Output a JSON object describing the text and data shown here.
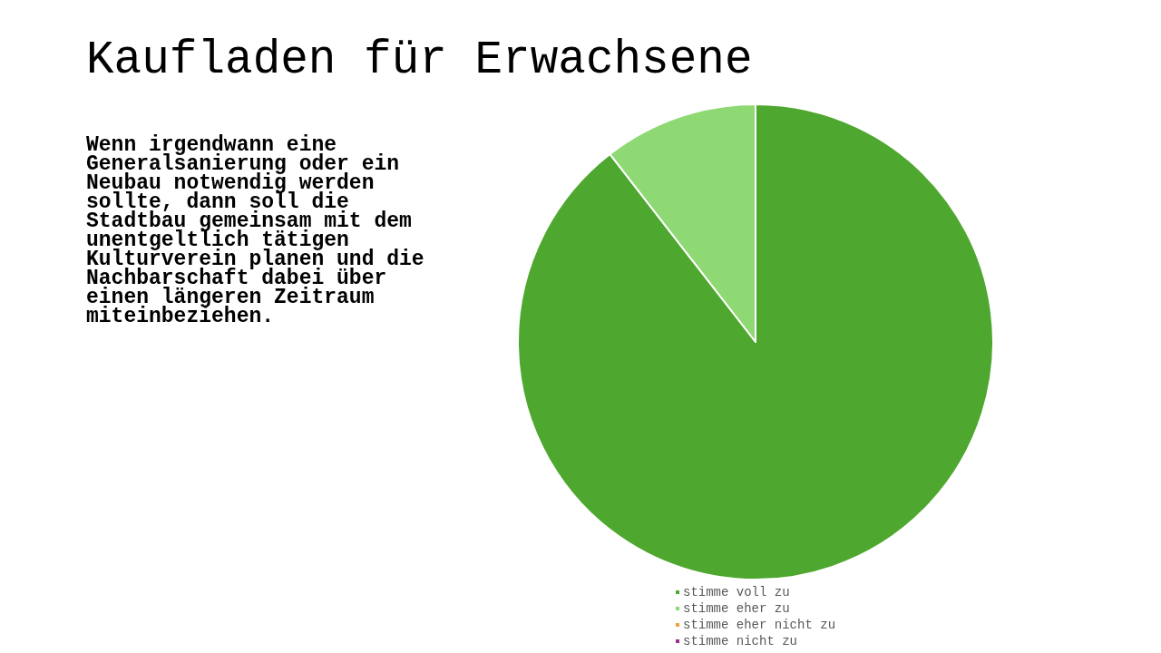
{
  "chart_data": {
    "type": "pie",
    "title": "Kaufladen für Erwachsene",
    "subtitle": "Wenn irgendwann eine Generalsanierung oder ein Neubau notwendig werden sollte, dann soll die Stadtbau gemeinsam mit dem unentgeltlich tätigen Kulturverein planen und die Nachbarschaft dabei über einen längeren Zeitraum miteinbeziehen.",
    "categories": [
      "stimme voll zu",
      "stimme eher zu",
      "stimme eher nicht zu",
      "stimme nicht zu"
    ],
    "values": [
      89.5,
      10.5,
      0,
      0
    ],
    "colors": [
      "#4ea72e",
      "#8ed973",
      "#f1a038",
      "#a02b93"
    ],
    "legend": "bottom"
  }
}
